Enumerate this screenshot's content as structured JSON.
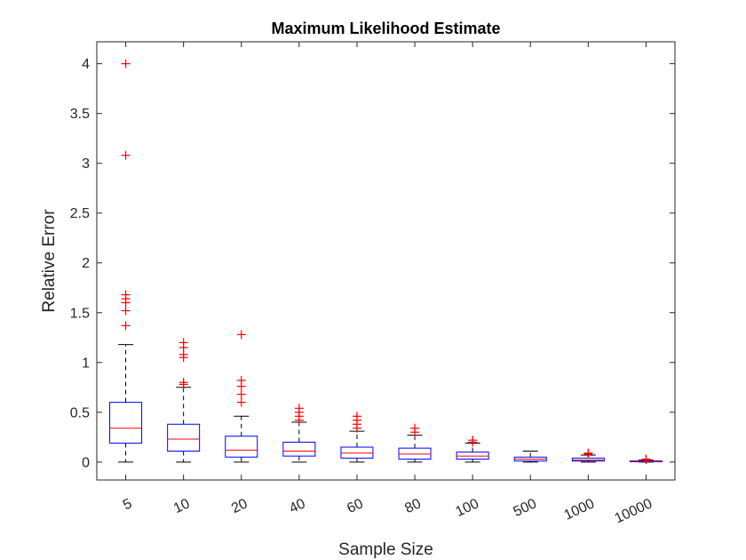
{
  "chart_data": {
    "type": "boxplot",
    "title": "Maximum Likelihood Estimate",
    "xlabel": "Sample Size",
    "ylabel": "Relative Error",
    "ylim": [
      -0.18,
      4.22
    ],
    "yticks": [
      "0",
      "0.5",
      "1",
      "1.5",
      "2",
      "2.5",
      "3",
      "3.5",
      "4"
    ],
    "categories": [
      "5",
      "10",
      "20",
      "40",
      "60",
      "80",
      "100",
      "500",
      "1000",
      "10000"
    ],
    "boxes": [
      {
        "category": "5",
        "whisker_low": 0.0,
        "q1": 0.19,
        "median": 0.34,
        "q3": 0.6,
        "whisker_high": 1.18,
        "outliers": [
          1.37,
          1.52,
          1.6,
          1.64,
          1.68,
          3.08,
          4.0
        ]
      },
      {
        "category": "10",
        "whisker_low": 0.0,
        "q1": 0.11,
        "median": 0.23,
        "q3": 0.38,
        "whisker_high": 0.75,
        "outliers": [
          0.78,
          0.8,
          1.05,
          1.08,
          1.15,
          1.2
        ]
      },
      {
        "category": "20",
        "whisker_low": 0.0,
        "q1": 0.05,
        "median": 0.12,
        "q3": 0.26,
        "whisker_high": 0.46,
        "outliers": [
          0.6,
          0.68,
          0.76,
          0.82,
          1.28
        ]
      },
      {
        "category": "40",
        "whisker_low": 0.0,
        "q1": 0.06,
        "median": 0.11,
        "q3": 0.2,
        "whisker_high": 0.4,
        "outliers": [
          0.42,
          0.46,
          0.5,
          0.54
        ]
      },
      {
        "category": "60",
        "whisker_low": 0.0,
        "q1": 0.04,
        "median": 0.09,
        "q3": 0.15,
        "whisker_high": 0.31,
        "outliers": [
          0.34,
          0.38,
          0.42,
          0.46
        ]
      },
      {
        "category": "80",
        "whisker_low": 0.0,
        "q1": 0.03,
        "median": 0.08,
        "q3": 0.14,
        "whisker_high": 0.27,
        "outliers": [
          0.3,
          0.34
        ]
      },
      {
        "category": "100",
        "whisker_low": 0.0,
        "q1": 0.03,
        "median": 0.06,
        "q3": 0.1,
        "whisker_high": 0.19,
        "outliers": [
          0.2,
          0.22
        ]
      },
      {
        "category": "500",
        "whisker_low": 0.0,
        "q1": 0.01,
        "median": 0.03,
        "q3": 0.05,
        "whisker_high": 0.11,
        "outliers": []
      },
      {
        "category": "1000",
        "whisker_low": 0.0,
        "q1": 0.01,
        "median": 0.02,
        "q3": 0.04,
        "whisker_high": 0.07,
        "outliers": [
          0.08,
          0.09
        ]
      },
      {
        "category": "10000",
        "whisker_low": 0.0,
        "q1": 0.003,
        "median": 0.007,
        "q3": 0.012,
        "whisker_high": 0.02,
        "outliers": [
          0.025,
          0.03
        ]
      }
    ],
    "grid": false,
    "legend": "none",
    "colors": {
      "box": "#0000ff",
      "median": "#ff0000",
      "whisker": "#000000",
      "outlier": "#ff0000",
      "axis": "#262626"
    }
  }
}
